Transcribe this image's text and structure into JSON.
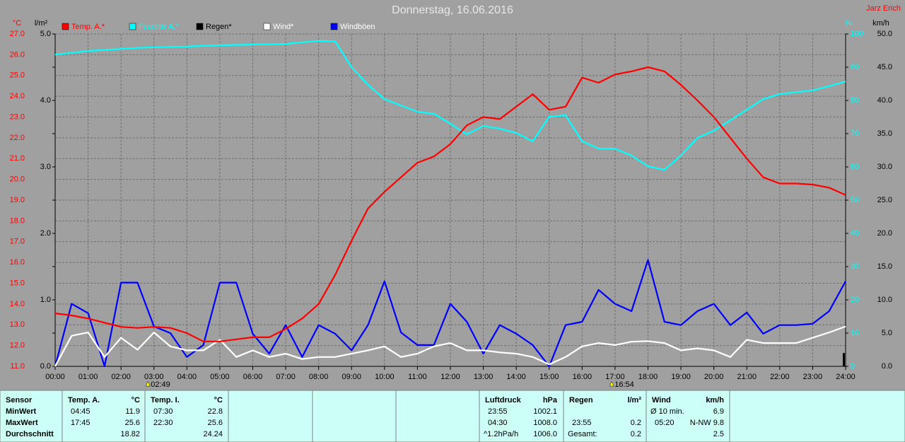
{
  "chart_data": {
    "type": "line",
    "title": "Donnerstag, 16.06.2016",
    "subtitle": "Jarz Erich",
    "x": [
      0,
      0.5,
      1,
      1.5,
      2,
      2.5,
      3,
      3.5,
      4,
      4.5,
      5,
      5.5,
      6,
      6.5,
      7,
      7.5,
      8,
      8.5,
      9,
      9.5,
      10,
      10.5,
      11,
      11.5,
      12,
      12.5,
      13,
      13.5,
      14,
      14.5,
      15,
      15.5,
      16,
      16.5,
      17,
      17.5,
      18,
      18.5,
      19,
      19.5,
      20,
      20.5,
      21,
      21.5,
      22,
      22.5,
      23,
      23.5,
      24
    ],
    "xlim": [
      0,
      24
    ],
    "xticks": [
      {
        "value": 0,
        "label": "00:00"
      },
      {
        "value": 1,
        "label": "01:00"
      },
      {
        "value": 2,
        "label": "02:00"
      },
      {
        "value": 3,
        "label": "03:00"
      },
      {
        "value": 4,
        "label": "04:00"
      },
      {
        "value": 5,
        "label": "05:00"
      },
      {
        "value": 6,
        "label": "06:00"
      },
      {
        "value": 7,
        "label": "07:00"
      },
      {
        "value": 8,
        "label": "08:00"
      },
      {
        "value": 9,
        "label": "09:00"
      },
      {
        "value": 10,
        "label": "10:00"
      },
      {
        "value": 11,
        "label": "11:00"
      },
      {
        "value": 12,
        "label": "12:00"
      },
      {
        "value": 13,
        "label": "13:00"
      },
      {
        "value": 14,
        "label": "14:00"
      },
      {
        "value": 15,
        "label": "15:00"
      },
      {
        "value": 16,
        "label": "16:00"
      },
      {
        "value": 17,
        "label": "17:00"
      },
      {
        "value": 18,
        "label": "18:00"
      },
      {
        "value": 19,
        "label": "19:00"
      },
      {
        "value": 20,
        "label": "20:00"
      },
      {
        "value": 21,
        "label": "21:00"
      },
      {
        "value": 22,
        "label": "22:00"
      },
      {
        "value": 23,
        "label": "23:00"
      },
      {
        "value": 24,
        "label": "24:00"
      }
    ],
    "y_unit": "°C",
    "y_color": "#ff0000",
    "ylim": [
      11,
      27
    ],
    "yticks": [
      {
        "value": 11,
        "label": "11.0"
      },
      {
        "value": 12,
        "label": "12.0"
      },
      {
        "value": 13,
        "label": "13.0"
      },
      {
        "value": 14,
        "label": "14.0"
      },
      {
        "value": 15,
        "label": "15.0"
      },
      {
        "value": 16,
        "label": "16.0"
      },
      {
        "value": 17,
        "label": "17.0"
      },
      {
        "value": 18,
        "label": "18.0"
      },
      {
        "value": 19,
        "label": "19.0"
      },
      {
        "value": 20,
        "label": "20.0"
      },
      {
        "value": 21,
        "label": "21.0"
      },
      {
        "value": 22,
        "label": "22.0"
      },
      {
        "value": 23,
        "label": "23.0"
      },
      {
        "value": 24,
        "label": "24.0"
      },
      {
        "value": 25,
        "label": "25.0"
      },
      {
        "value": 26,
        "label": "26.0"
      },
      {
        "value": 27,
        "label": "27.0"
      }
    ],
    "y2_unit": "%",
    "y2_color": "#00ffff",
    "y2lim": [
      0,
      100
    ],
    "y2ticks": [
      0,
      10,
      20,
      30,
      40,
      50,
      60,
      70,
      80,
      90,
      100
    ],
    "y3_unit": "l/m²",
    "y3_color": "#000000",
    "y3lim": [
      0,
      5
    ],
    "y3ticks": [
      {
        "value": 0,
        "label": "0.0"
      },
      {
        "value": 1,
        "label": "1.0"
      },
      {
        "value": 2,
        "label": "2.0"
      },
      {
        "value": 3,
        "label": "3.0"
      },
      {
        "value": 4,
        "label": "4.0"
      },
      {
        "value": 5,
        "label": "5.0"
      }
    ],
    "y4_unit": "km/h",
    "y4_color": "#000000",
    "y4lim": [
      0,
      50
    ],
    "y4ticks": [
      {
        "value": 0,
        "label": "0.0"
      },
      {
        "value": 5,
        "label": "5.0"
      },
      {
        "value": 10,
        "label": "10.0"
      },
      {
        "value": 15,
        "label": "15.0"
      },
      {
        "value": 20,
        "label": "20.0"
      },
      {
        "value": 25,
        "label": "25.0"
      },
      {
        "value": 30,
        "label": "30.0"
      },
      {
        "value": 35,
        "label": "35.0"
      },
      {
        "value": 40,
        "label": "40.0"
      },
      {
        "value": 45,
        "label": "45.0"
      },
      {
        "value": 50,
        "label": "50.0"
      }
    ],
    "grid": true,
    "series": [
      {
        "name": "Temp. A.*",
        "color": "#ff0000",
        "text_color": "#ff0000",
        "axis": "y",
        "values": [
          13.55,
          13.45,
          13.3,
          13.1,
          12.9,
          12.85,
          12.9,
          12.85,
          12.6,
          12.2,
          12.2,
          12.3,
          12.4,
          12.4,
          12.8,
          13.3,
          14.0,
          15.4,
          17.05,
          18.6,
          19.4,
          20.1,
          20.8,
          21.1,
          21.7,
          22.6,
          23.0,
          22.9,
          23.5,
          24.1,
          23.35,
          23.5,
          24.9,
          24.65,
          25.05,
          25.2,
          25.4,
          25.2,
          24.55,
          23.8,
          23.0,
          22.0,
          21.0,
          20.1,
          19.8,
          19.8,
          19.75,
          19.6,
          19.25
        ]
      },
      {
        "name": "Feuchte A.*",
        "color": "#00ffff",
        "text_color": "#00ffff",
        "axis": "y2",
        "values": [
          93.8,
          94.3,
          94.9,
          95.2,
          95.5,
          95.8,
          96,
          96.1,
          96.2,
          96.4,
          96.6,
          96.7,
          96.8,
          96.9,
          97,
          97.5,
          97.9,
          97.8,
          90,
          84.7,
          80.4,
          78.5,
          76.6,
          76.0,
          73,
          69.8,
          72.3,
          71.5,
          70.2,
          67.7,
          75.1,
          75.5,
          67.7,
          65.5,
          65.5,
          63.4,
          60.2,
          59.1,
          63.4,
          68.7,
          70.9,
          74,
          77.2,
          80.4,
          81.9,
          82.5,
          83,
          84.3,
          85.7
        ]
      },
      {
        "name": "Regen*",
        "color": "#000000",
        "text_color": "#000000",
        "axis": "y3",
        "style": "bar",
        "values": [
          0,
          0,
          0,
          0,
          0,
          0,
          0,
          0,
          0,
          0,
          0,
          0,
          0,
          0,
          0,
          0,
          0,
          0,
          0,
          0,
          0,
          0,
          0,
          0,
          0,
          0,
          0,
          0,
          0,
          0,
          0,
          0,
          0,
          0,
          0,
          0,
          0,
          0,
          0,
          0,
          0,
          0,
          0,
          0,
          0,
          0,
          0,
          0,
          0.2
        ]
      },
      {
        "name": "Wind*",
        "color": "#ffffff",
        "text_color": "#ffffff",
        "axis": "y4",
        "values": [
          0,
          4.6,
          5.1,
          1.4,
          4.3,
          2.5,
          5.1,
          3,
          2.4,
          2.4,
          4,
          1.4,
          2.4,
          1.4,
          1.9,
          1.1,
          1.4,
          1.4,
          1.9,
          2.4,
          3,
          1.4,
          1.9,
          3,
          3.5,
          2.4,
          2.4,
          2.1,
          1.9,
          1.4,
          0.3,
          1.4,
          3,
          3.5,
          3.2,
          3.7,
          3.8,
          3.5,
          2.4,
          2.7,
          2.4,
          1.4,
          4,
          3.5,
          3.5,
          3.5,
          4.3,
          5.1,
          6
        ]
      },
      {
        "name": "Windböen",
        "color": "#0000ff",
        "text_color": "#ffffff",
        "axis": "y4",
        "values": [
          0,
          9.4,
          8,
          0,
          12.6,
          12.6,
          6,
          5,
          1.4,
          3.2,
          12.6,
          12.6,
          4.9,
          1.9,
          6.2,
          1.4,
          6.2,
          4.9,
          2.4,
          6.2,
          12.8,
          5.1,
          3.2,
          3.2,
          9.4,
          6.7,
          1.9,
          6.2,
          4.9,
          3.2,
          0,
          6.2,
          6.7,
          11.5,
          9.4,
          8.3,
          16,
          6.7,
          6.2,
          8.3,
          9.4,
          6.2,
          8.1,
          4.9,
          6.2,
          6.2,
          6.4,
          8.3,
          12.8
        ]
      }
    ],
    "annotations": [
      {
        "label": "02:49",
        "x": 2.8167
      },
      {
        "label": "16:54",
        "x": 16.9
      }
    ]
  },
  "stats": {
    "row_header": "Sensor",
    "row_labels": [
      "MinWert",
      "MaxWert",
      "Durchschnitt"
    ],
    "groups": [
      {
        "name": "Temp. A.",
        "unit": "°C",
        "rows": [
          [
            "04:45",
            "11.9"
          ],
          [
            "17:45",
            "25.6"
          ],
          [
            null,
            "18.82"
          ]
        ]
      },
      {
        "name": "Temp. I.",
        "unit": "°C",
        "rows": [
          [
            "07:30",
            "22.8"
          ],
          [
            "22:30",
            "25.6"
          ],
          [
            null,
            "24.24"
          ]
        ]
      },
      {
        "name": "Luftdruck",
        "unit": "hPa",
        "rows": [
          [
            "23:55",
            "1002.1"
          ],
          [
            "04:30",
            "1008.0"
          ],
          [
            "^1.2hPa/h",
            "1006.0"
          ]
        ]
      },
      {
        "name": "Regen",
        "unit": "l/m²",
        "rows": [
          [
            null,
            null
          ],
          [
            "23:55",
            "0.2"
          ],
          [
            "Gesamt:",
            "0.2"
          ]
        ]
      },
      {
        "name": "Wind",
        "unit": "km/h",
        "rows": [
          [
            "Ø 10 min.",
            "6.9"
          ],
          [
            "05:20",
            "N-NW 9.8"
          ],
          [
            null,
            "2.5"
          ]
        ]
      }
    ]
  }
}
